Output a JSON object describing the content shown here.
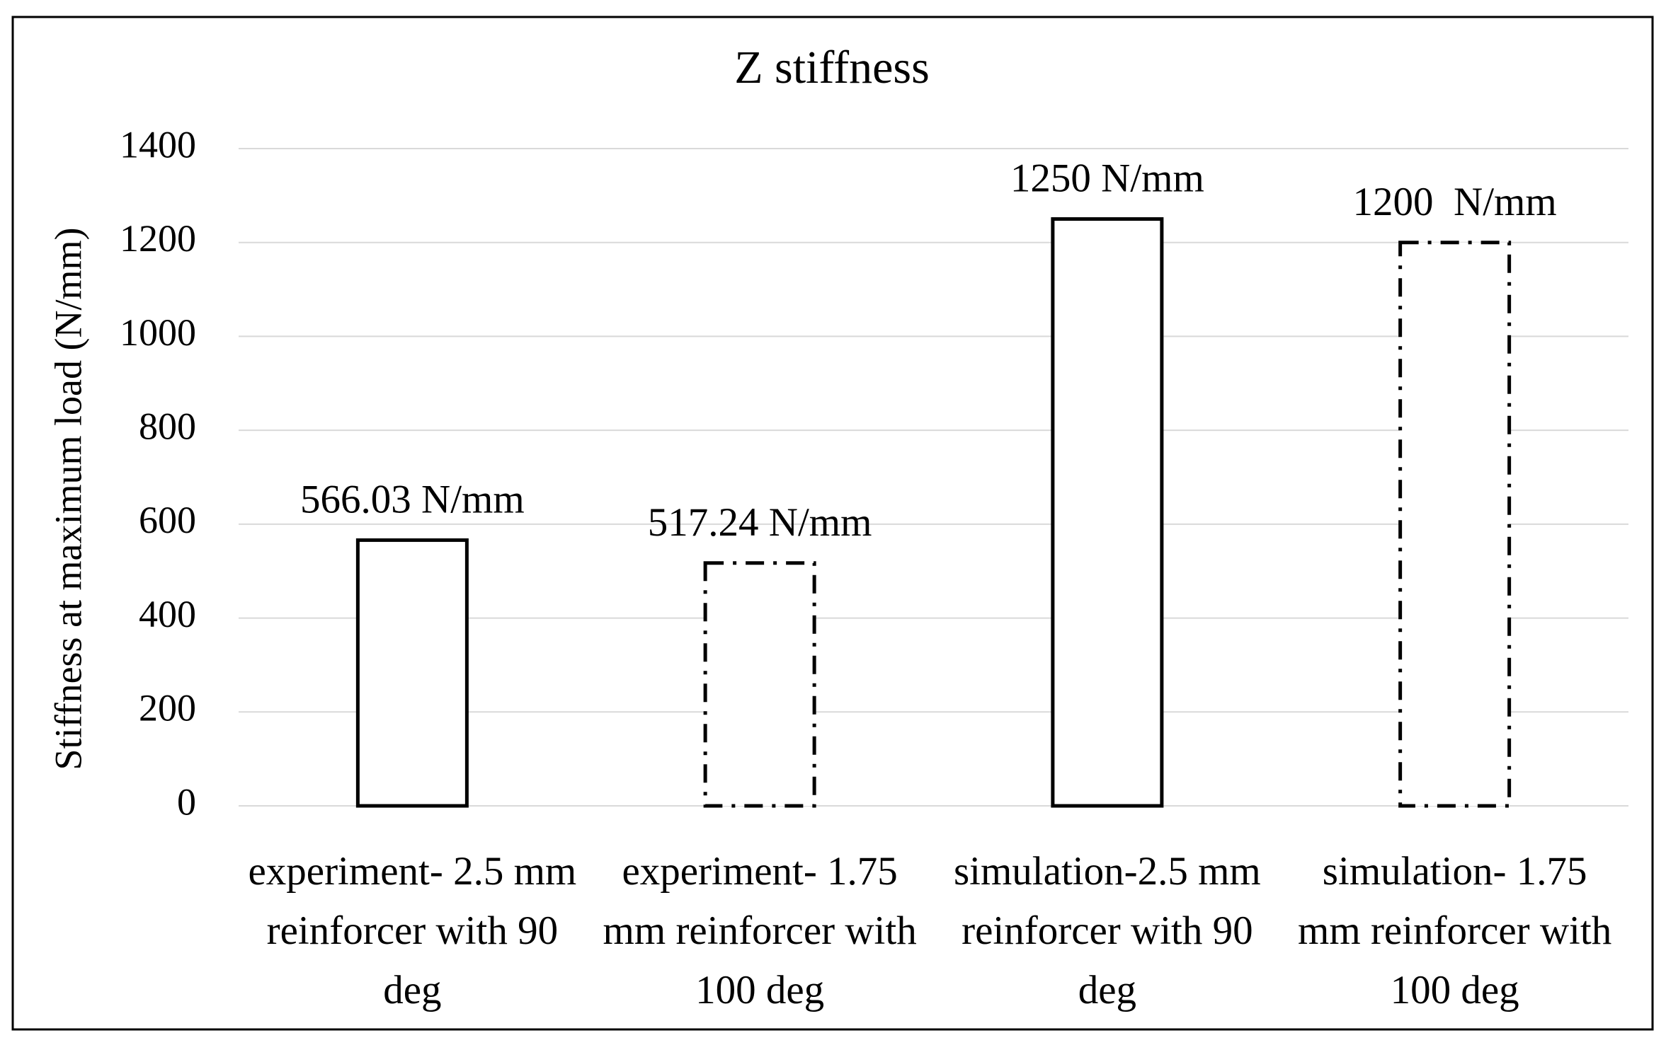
{
  "chart_data": {
    "type": "bar",
    "title": "Z stiffness",
    "y_label": "Stiffness at maximum load (N/mm)",
    "categories": [
      "experiment- 2.5 mm reinforcer with 90 deg",
      "experiment- 1.75 mm reinforcer with 100 deg",
      "simulation-2.5 mm reinforcer with 90 deg",
      "simulation- 1.75 mm reinforcer with 100 deg"
    ],
    "values": [
      566.03,
      517.24,
      1250,
      1200
    ],
    "value_labels": [
      "566.03 N/mm",
      "517.24 N/mm",
      "1250 N/mm",
      "1200  N/mm"
    ],
    "line_styles": [
      "solid",
      "dashdot",
      "solid",
      "dashdot"
    ],
    "color": "#000000",
    "ylim": [
      0,
      1400
    ],
    "yticks": [
      0,
      200,
      400,
      600,
      800,
      1000,
      1200,
      1400
    ],
    "grid": true
  }
}
